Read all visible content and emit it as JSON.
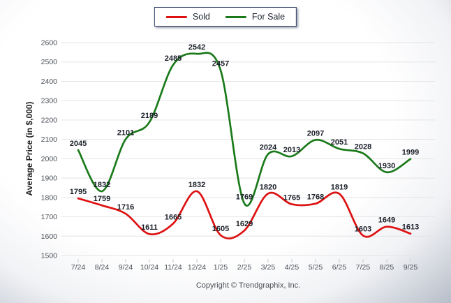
{
  "chart_data": {
    "type": "line",
    "x": [
      "7/24",
      "8/24",
      "9/24",
      "10/24",
      "11/24",
      "12/24",
      "1/25",
      "2/25",
      "3/25",
      "4/25",
      "5/25",
      "6/25",
      "7/25",
      "8/25",
      "9/25"
    ],
    "series": [
      {
        "name": "Sold",
        "color": "#dd1111",
        "values": [
          1795,
          1759,
          1716,
          1611,
          1665,
          1832,
          1605,
          1629,
          1820,
          1765,
          1768,
          1819,
          1603,
          1649,
          1613
        ]
      },
      {
        "name": "For Sale",
        "color": "#1a7a1a",
        "values": [
          2045,
          1832,
          2101,
          2189,
          2485,
          2542,
          2457,
          1769,
          2024,
          2013,
          2097,
          2051,
          2028,
          1930,
          1999
        ]
      }
    ],
    "xlabel": "",
    "ylabel": "Average Price (in $,000)",
    "ylim": [
      1500,
      2600
    ],
    "ytick_step": 100,
    "grid": true,
    "legend_position": "top-center",
    "line_style": "smooth",
    "data_labels": true
  },
  "footer": {
    "copyright": "Copyright © Trendgraphix, Inc."
  }
}
